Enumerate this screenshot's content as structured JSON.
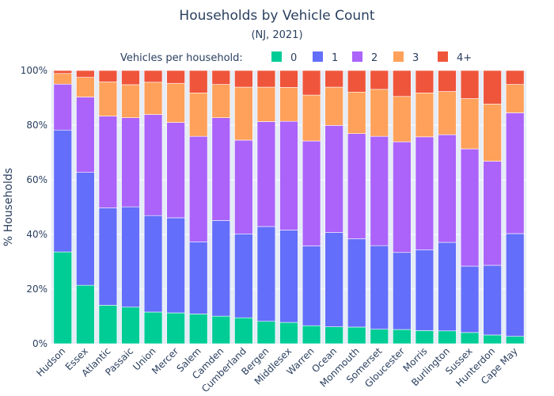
{
  "chart_data": {
    "type": "bar",
    "stacked": true,
    "title": "Households by Vehicle Count",
    "subtitle": "(NJ, 2021)",
    "xlabel": "",
    "ylabel": "% Households",
    "ylim": [
      0,
      100
    ],
    "y_ticks": [
      "0%",
      "20%",
      "40%",
      "60%",
      "80%",
      "100%"
    ],
    "grid": true,
    "legend": {
      "title": "Vehicles per household:",
      "placement": "top-center"
    },
    "categories": [
      "Hudson",
      "Essex",
      "Atlantic",
      "Passaic",
      "Union",
      "Mercer",
      "Salem",
      "Camden",
      "Cumberland",
      "Bergen",
      "Middlesex",
      "Warren",
      "Ocean",
      "Monmouth",
      "Somerset",
      "Gloucester",
      "Morris",
      "Burlington",
      "Sussex",
      "Hunterdon",
      "Cape May"
    ],
    "series": [
      {
        "name": "0",
        "color": "#00cc96",
        "values": [
          33.6,
          21.4,
          14.1,
          13.4,
          11.6,
          11.3,
          10.9,
          10.1,
          9.5,
          8.2,
          7.8,
          6.6,
          6.2,
          6.1,
          5.3,
          5.2,
          4.8,
          4.7,
          4.1,
          3.2,
          2.7
        ]
      },
      {
        "name": "1",
        "color": "#636efa",
        "values": [
          44.6,
          41.3,
          35.6,
          36.7,
          35.3,
          34.8,
          26.4,
          35.0,
          30.7,
          34.7,
          33.8,
          29.2,
          34.5,
          32.3,
          30.6,
          28.2,
          29.6,
          32.4,
          24.3,
          25.5,
          37.6
        ]
      },
      {
        "name": "2",
        "color": "#ab63fa",
        "values": [
          16.8,
          27.6,
          33.6,
          32.6,
          37.0,
          34.9,
          38.6,
          37.6,
          34.3,
          38.4,
          39.8,
          38.4,
          39.2,
          38.5,
          40.0,
          40.5,
          41.3,
          39.4,
          42.9,
          38.1,
          44.2
        ]
      },
      {
        "name": "3",
        "color": "#ffa15a",
        "values": [
          3.9,
          7.2,
          12.5,
          12.1,
          11.8,
          14.3,
          15.9,
          12.2,
          19.4,
          12.6,
          12.4,
          16.8,
          14.0,
          15.2,
          17.2,
          16.6,
          16.1,
          15.8,
          18.4,
          20.9,
          10.4
        ]
      },
      {
        "name": "4+",
        "color": "#ef553b",
        "values": [
          1.1,
          2.5,
          4.2,
          5.2,
          4.3,
          4.7,
          8.2,
          5.1,
          6.1,
          6.1,
          6.2,
          9.0,
          6.1,
          7.9,
          6.9,
          9.5,
          8.2,
          7.7,
          10.3,
          12.3,
          5.1
        ]
      }
    ]
  }
}
